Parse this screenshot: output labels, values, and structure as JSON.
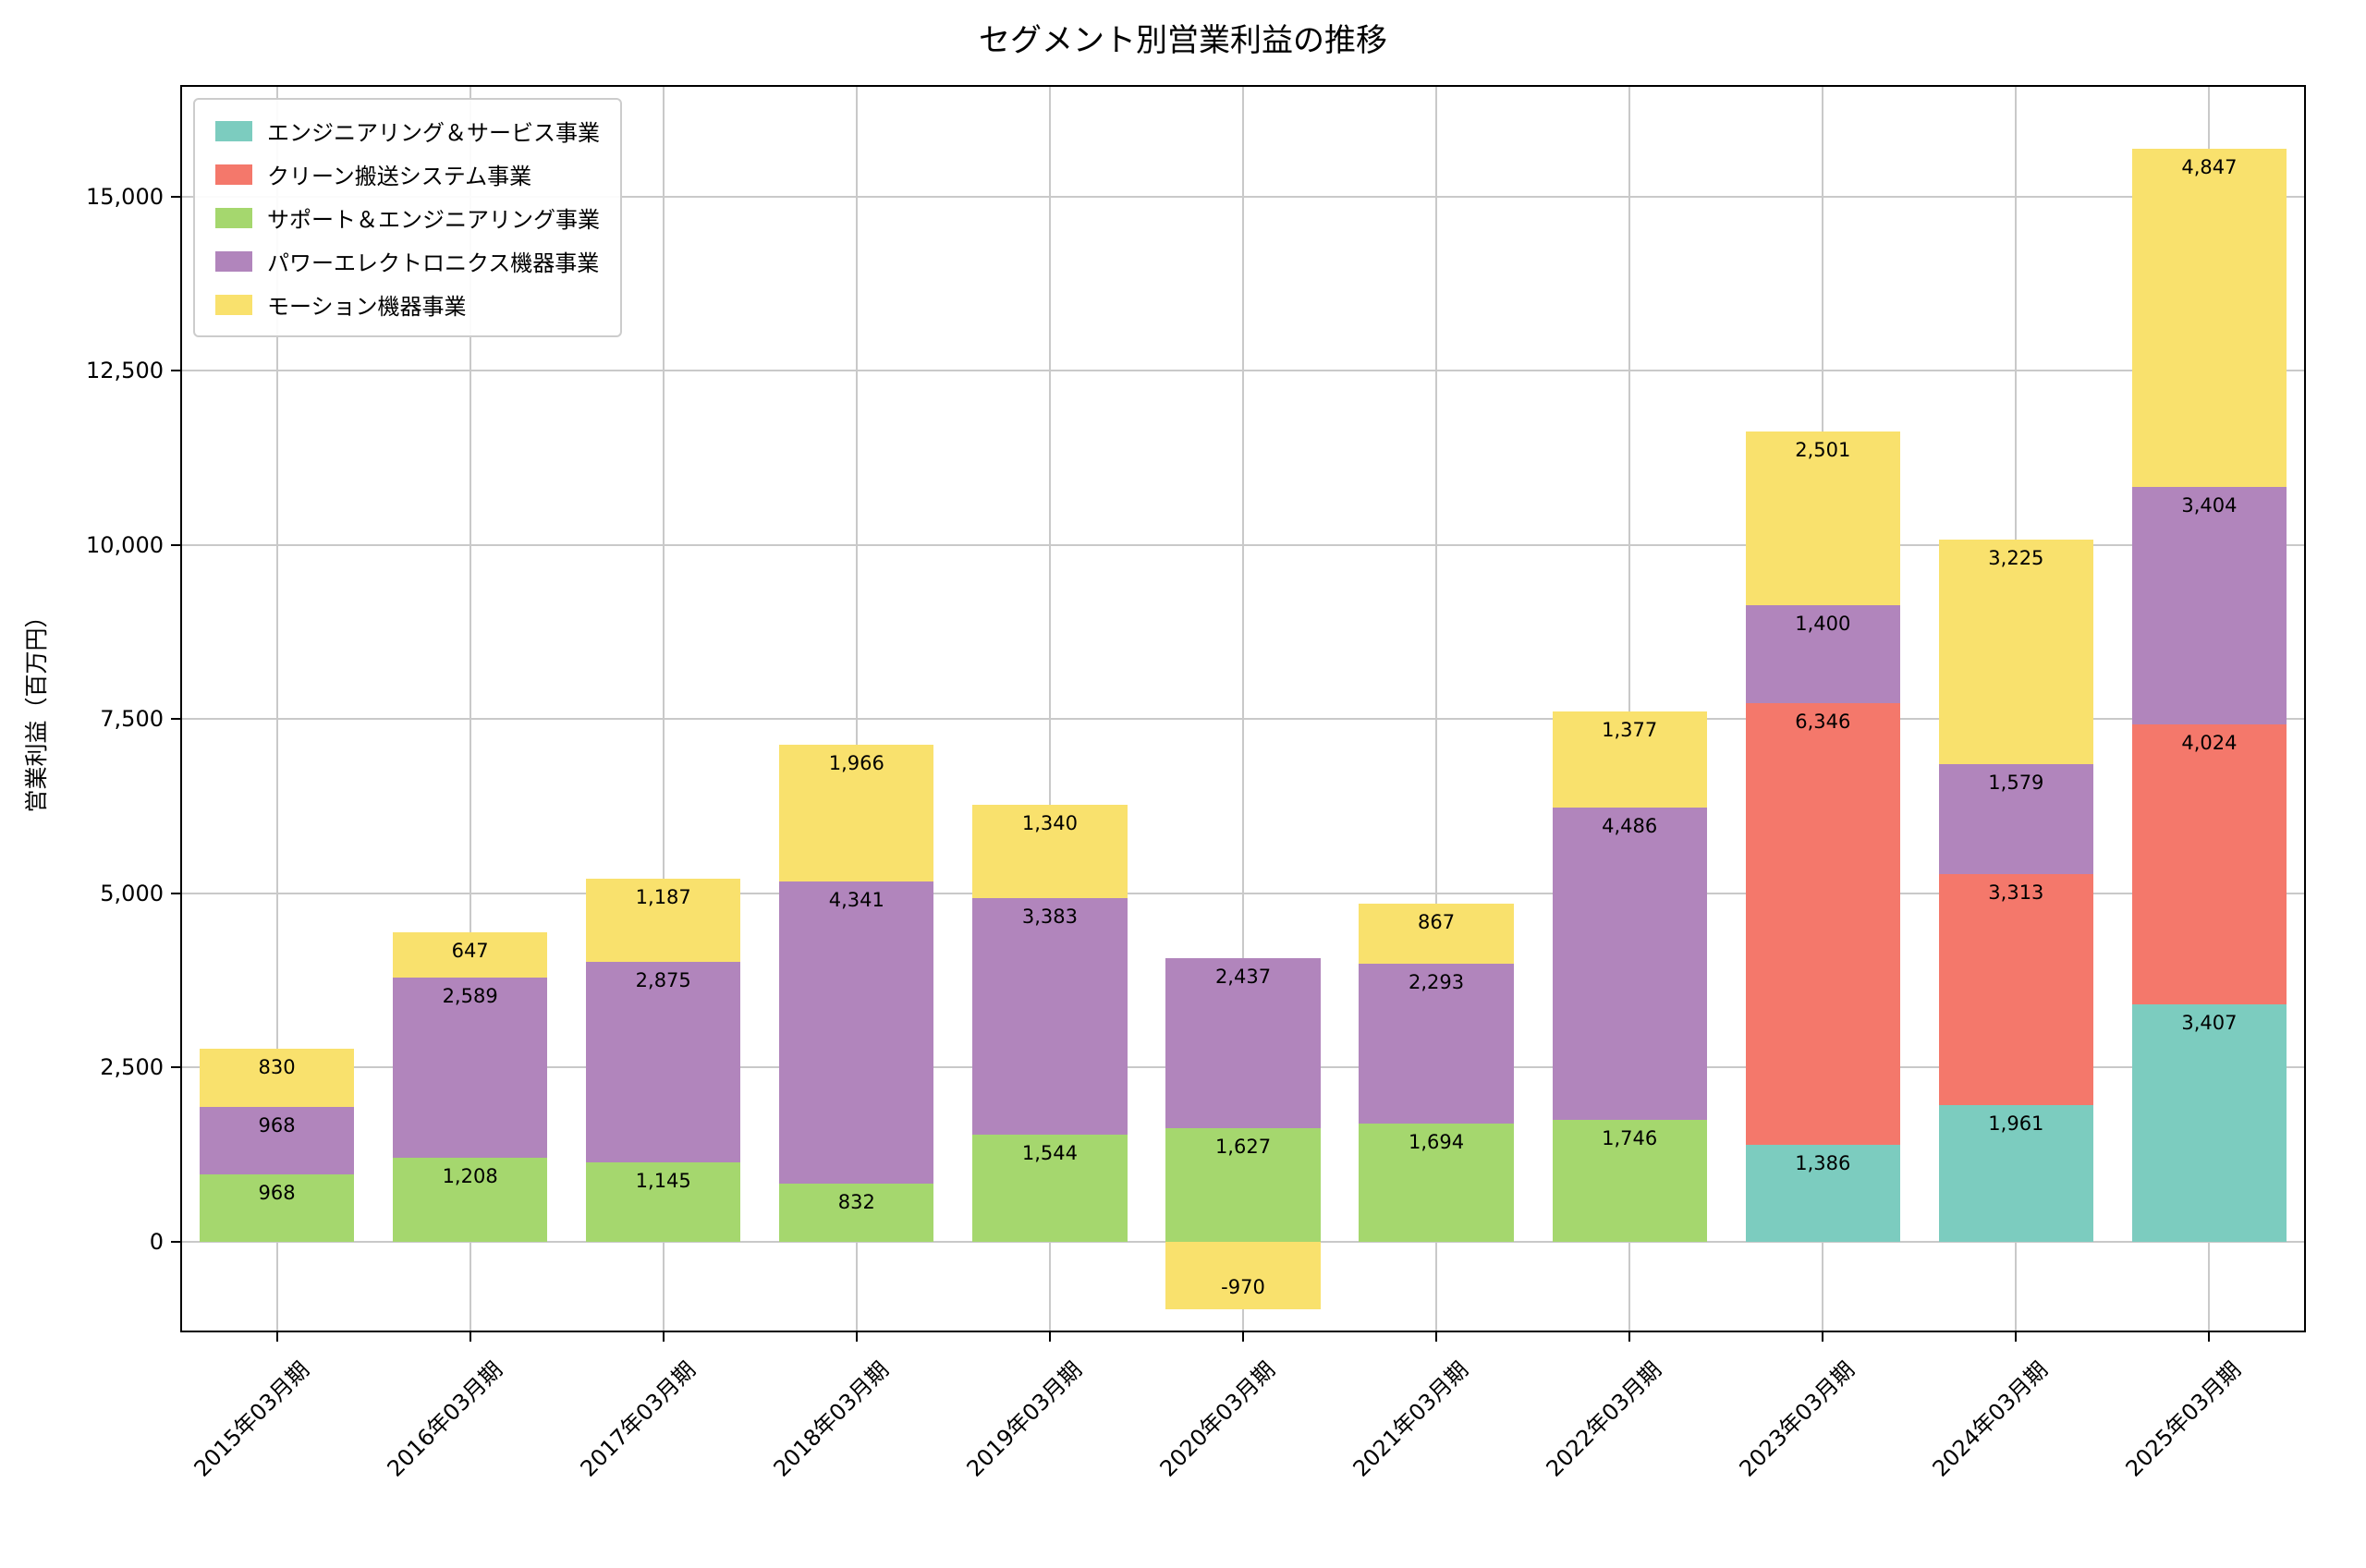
{
  "chart_data": {
    "type": "bar",
    "stacked": true,
    "title": "セグメント別営業利益の推移",
    "ylabel": "営業利益（百万円）",
    "xlabel": "",
    "categories": [
      "2015年03月期",
      "2016年03月期",
      "2017年03月期",
      "2018年03月期",
      "2019年03月期",
      "2020年03月期",
      "2021年03月期",
      "2022年03月期",
      "2023年03月期",
      "2024年03月期",
      "2025年03月期"
    ],
    "series": [
      {
        "name": "エンジニアリング＆サービス事業",
        "color": "#7CCCBF",
        "values": [
          0,
          0,
          0,
          0,
          0,
          0,
          0,
          0,
          1386,
          1961,
          3407
        ]
      },
      {
        "name": "クリーン搬送システム事業",
        "color": "#F4786B",
        "values": [
          0,
          0,
          0,
          0,
          0,
          0,
          0,
          0,
          6346,
          3313,
          4024
        ]
      },
      {
        "name": "サポート＆エンジニアリング事業",
        "color": "#A5D76E",
        "values": [
          968,
          1208,
          1145,
          832,
          1544,
          1627,
          1694,
          1746,
          0,
          0,
          0
        ]
      },
      {
        "name": "パワーエレクトロニクス機器事業",
        "color": "#B185BC",
        "values": [
          968,
          2589,
          2875,
          4341,
          3383,
          2437,
          2293,
          4486,
          1400,
          1579,
          3404
        ]
      },
      {
        "name": "モーション機器事業",
        "color": "#F9E16D",
        "values": [
          830,
          647,
          1187,
          1966,
          1340,
          -970,
          867,
          1377,
          2501,
          3225,
          4847
        ]
      }
    ],
    "yticks": [
      0,
      2500,
      5000,
      7500,
      10000,
      12500,
      15000
    ],
    "ylim": [
      -1300,
      16600
    ],
    "grid": true,
    "legend_position": "upper left"
  }
}
